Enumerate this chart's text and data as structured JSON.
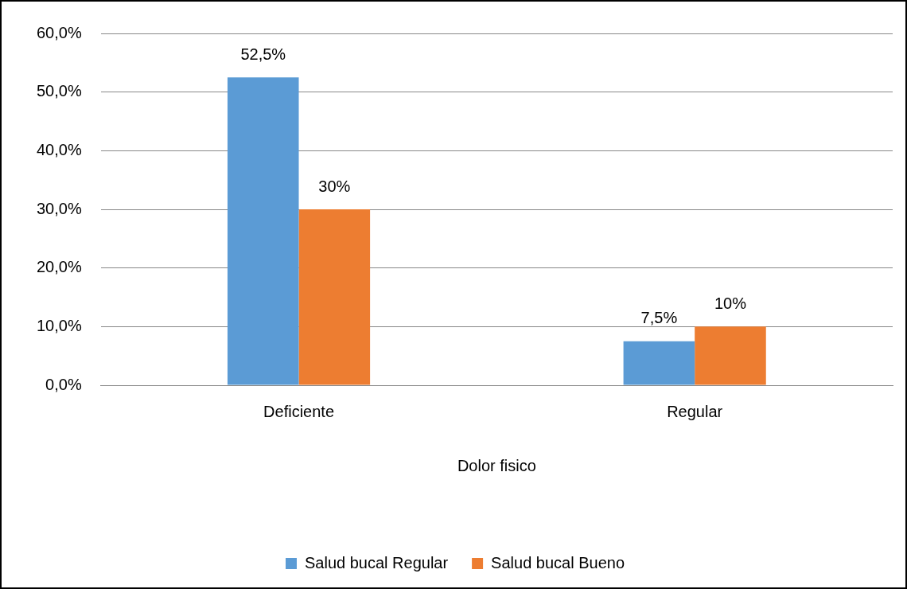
{
  "chart_data": {
    "type": "bar",
    "categories": [
      "Deficiente",
      "Regular"
    ],
    "xlabel": "Dolor fisico",
    "series": [
      {
        "name": "Salud bucal Regular",
        "color": "#5b9bd5",
        "values": [
          52.5,
          7.5
        ],
        "value_labels": [
          "52,5%",
          "7,5%"
        ]
      },
      {
        "name": "Salud bucal Bueno",
        "color": "#ed7d31",
        "values": [
          30,
          10
        ],
        "value_labels": [
          "30%",
          "10%"
        ]
      }
    ],
    "ylim": [
      0,
      60
    ],
    "yticks": [
      {
        "value": 0,
        "label": "0,0%"
      },
      {
        "value": 10,
        "label": "10,0%"
      },
      {
        "value": 20,
        "label": "20,0%"
      },
      {
        "value": 30,
        "label": "30,0%"
      },
      {
        "value": 40,
        "label": "40,0%"
      },
      {
        "value": 50,
        "label": "50,0%"
      },
      {
        "value": 60,
        "label": "60,0%"
      }
    ],
    "grid": "y",
    "legend": "bottom"
  }
}
